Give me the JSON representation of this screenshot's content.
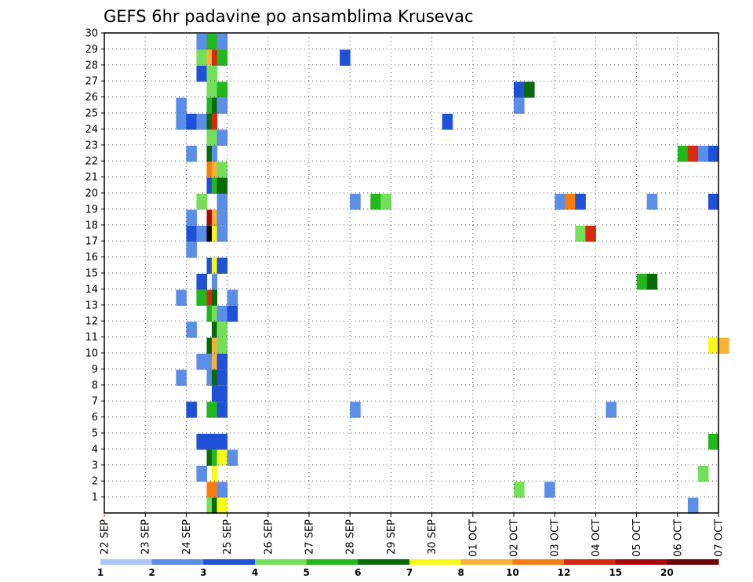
{
  "chart_data": {
    "type": "heatmap",
    "title": "GEFS 6hr padavine po ansamblima Krusevac",
    "xlabel": "",
    "ylabel": "",
    "x_ticks": [
      "22 SEP",
      "23 SEP",
      "24 SEP",
      "25 SEP",
      "26 SEP",
      "27 SEP",
      "28 SEP",
      "29 SEP",
      "30 SEP",
      "01 OCT",
      "02 OCT",
      "03 OCT",
      "04 OCT",
      "05 OCT",
      "06 OCT",
      "07 OCT"
    ],
    "x_range_days": [
      0,
      15
    ],
    "y_ticks": [
      "1",
      "2",
      "3",
      "4",
      "5",
      "6",
      "7",
      "8",
      "9",
      "10",
      "11",
      "12",
      "13",
      "14",
      "15",
      "16",
      "17",
      "18",
      "19",
      "20",
      "21",
      "22",
      "23",
      "24",
      "25",
      "26",
      "27",
      "28",
      "29",
      "30"
    ],
    "y_range": [
      0,
      30
    ],
    "grid": true,
    "colorbar": {
      "labels": [
        "1",
        "2",
        "3",
        "4",
        "5",
        "6",
        "7",
        "8",
        "10",
        "12",
        "15",
        "20"
      ],
      "colors": [
        "#aec6f5",
        "#5b8ee8",
        "#1f50d8",
        "#74e05a",
        "#22b81c",
        "#0a6a0a",
        "#f8f81a",
        "#f8b238",
        "#f87c0e",
        "#d8280e",
        "#a8080a",
        "#6a0406"
      ]
    },
    "cells": [
      {
        "member": 30,
        "start": [
          [
            2.25,
            1
          ],
          [
            2.5,
            4
          ],
          [
            2.75,
            1
          ]
        ]
      },
      {
        "member": 29,
        "start": [
          [
            2.25,
            3
          ],
          [
            2.5,
            7
          ],
          [
            2.625,
            9
          ],
          [
            2.75,
            4
          ],
          [
            5.75,
            2
          ]
        ]
      },
      {
        "member": 28,
        "start": [
          [
            2.25,
            2
          ],
          [
            2.5,
            3
          ]
        ]
      },
      {
        "member": 27,
        "start": [
          [
            2.5,
            3
          ],
          [
            2.75,
            4
          ],
          [
            10.0,
            2
          ],
          [
            10.25,
            5
          ]
        ]
      },
      {
        "member": 26,
        "start": [
          [
            1.75,
            1
          ],
          [
            2.5,
            4
          ],
          [
            2.625,
            5
          ],
          [
            2.75,
            1
          ],
          [
            10.0,
            1
          ]
        ]
      },
      {
        "member": 25,
        "start": [
          [
            1.75,
            1
          ],
          [
            2.0,
            2
          ],
          [
            2.25,
            1
          ],
          [
            2.5,
            5
          ],
          [
            2.625,
            9
          ],
          [
            8.25,
            2
          ]
        ]
      },
      {
        "member": 24,
        "start": [
          [
            2.5,
            3
          ],
          [
            2.75,
            1
          ]
        ]
      },
      {
        "member": 23,
        "start": [
          [
            2.0,
            1
          ],
          [
            2.5,
            5
          ],
          [
            2.625,
            1
          ],
          [
            14.0,
            4
          ],
          [
            14.25,
            9
          ],
          [
            14.5,
            1
          ],
          [
            14.75,
            2
          ]
        ]
      },
      {
        "member": 22,
        "start": [
          [
            2.5,
            8
          ],
          [
            2.625,
            7
          ],
          [
            2.75,
            3
          ]
        ]
      },
      {
        "member": 21,
        "start": [
          [
            2.5,
            2
          ],
          [
            2.625,
            4
          ],
          [
            2.75,
            5
          ]
        ]
      },
      {
        "member": 20,
        "start": [
          [
            2.25,
            3
          ],
          [
            2.75,
            1
          ],
          [
            6.0,
            1
          ],
          [
            6.5,
            4
          ],
          [
            6.75,
            3
          ],
          [
            11.0,
            1
          ],
          [
            11.25,
            8
          ],
          [
            11.5,
            2
          ],
          [
            13.25,
            1
          ],
          [
            14.75,
            2
          ]
        ]
      },
      {
        "member": 19,
        "start": [
          [
            2.0,
            1
          ],
          [
            2.5,
            10
          ],
          [
            2.625,
            7
          ],
          [
            2.75,
            1
          ]
        ]
      },
      {
        "member": 18,
        "start": [
          [
            2.0,
            2
          ],
          [
            2.25,
            1
          ],
          [
            2.5,
            12
          ],
          [
            2.625,
            6
          ],
          [
            2.75,
            1
          ],
          [
            11.5,
            3
          ],
          [
            11.75,
            9
          ]
        ]
      },
      {
        "member": 17,
        "start": [
          [
            2.0,
            1
          ]
        ]
      },
      {
        "member": 16,
        "start": [
          [
            2.5,
            2
          ],
          [
            2.625,
            6
          ],
          [
            2.75,
            2
          ]
        ]
      },
      {
        "member": 15,
        "start": [
          [
            2.25,
            2
          ],
          [
            2.625,
            1
          ],
          [
            13.0,
            4
          ],
          [
            13.25,
            5
          ]
        ]
      },
      {
        "member": 14,
        "start": [
          [
            1.75,
            1
          ],
          [
            2.25,
            4
          ],
          [
            2.5,
            9
          ],
          [
            2.625,
            5
          ],
          [
            3.0,
            1
          ]
        ]
      },
      {
        "member": 13,
        "start": [
          [
            2.5,
            4
          ],
          [
            2.625,
            3
          ],
          [
            2.75,
            1
          ],
          [
            3.0,
            2
          ]
        ]
      },
      {
        "member": 12,
        "start": [
          [
            2.0,
            1
          ],
          [
            2.625,
            5
          ],
          [
            2.75,
            3
          ]
        ]
      },
      {
        "member": 11,
        "start": [
          [
            2.5,
            5
          ],
          [
            2.625,
            7
          ],
          [
            2.75,
            3
          ],
          [
            14.75,
            6
          ],
          [
            15.0,
            7
          ]
        ]
      },
      {
        "member": 10,
        "start": [
          [
            2.25,
            1
          ],
          [
            2.5,
            1
          ],
          [
            2.625,
            7
          ],
          [
            2.75,
            2
          ]
        ]
      },
      {
        "member": 9,
        "start": [
          [
            1.75,
            1
          ],
          [
            2.5,
            1
          ],
          [
            2.625,
            5
          ],
          [
            2.75,
            2
          ]
        ]
      },
      {
        "member": 8,
        "start": [
          [
            2.625,
            2
          ],
          [
            2.75,
            2
          ]
        ]
      },
      {
        "member": 7,
        "start": [
          [
            2.0,
            2
          ],
          [
            2.5,
            4
          ],
          [
            2.75,
            2
          ],
          [
            6.0,
            1
          ],
          [
            12.25,
            1
          ]
        ]
      },
      {
        "member": 5,
        "start": [
          [
            2.25,
            2
          ],
          [
            2.5,
            2
          ],
          [
            2.75,
            2
          ],
          [
            14.75,
            4
          ]
        ]
      },
      {
        "member": 4,
        "start": [
          [
            2.5,
            5
          ],
          [
            2.625,
            4
          ],
          [
            2.75,
            6
          ],
          [
            3.0,
            1
          ]
        ]
      },
      {
        "member": 3,
        "start": [
          [
            2.25,
            1
          ],
          [
            2.625,
            6
          ],
          [
            14.5,
            3
          ]
        ]
      },
      {
        "member": 2,
        "start": [
          [
            2.5,
            8
          ],
          [
            2.75,
            1
          ],
          [
            10.0,
            3
          ],
          [
            10.75,
            1
          ]
        ]
      },
      {
        "member": 1,
        "start": [
          [
            2.5,
            3
          ],
          [
            2.625,
            5
          ],
          [
            2.75,
            6
          ],
          [
            14.25,
            1
          ]
        ]
      }
    ]
  }
}
